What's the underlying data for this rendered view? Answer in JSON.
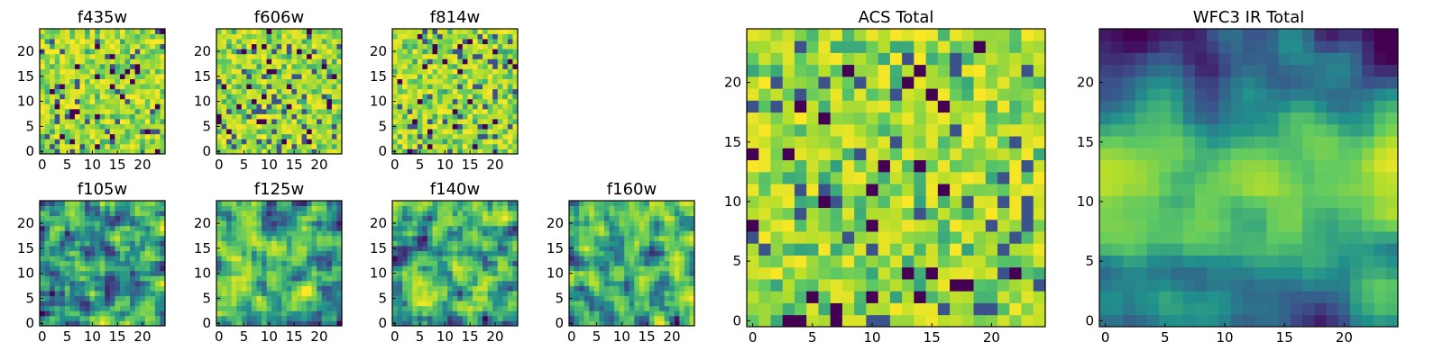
{
  "chart_data": [
    {
      "type": "heatmap",
      "title": "f435w",
      "grid_size": 25,
      "xticks": [
        "0",
        "5",
        "10",
        "15",
        "20"
      ],
      "yticks": [
        "0",
        "5",
        "10",
        "15",
        "20"
      ],
      "pattern": "noise",
      "seed": 11,
      "colormap": [
        "#440154",
        "#3b528b",
        "#21918c",
        "#5ec962",
        "#b5de2b",
        "#fde725"
      ]
    },
    {
      "type": "heatmap",
      "title": "f606w",
      "grid_size": 25,
      "xticks": [
        "0",
        "5",
        "10",
        "15",
        "20"
      ],
      "yticks": [
        "0",
        "5",
        "10",
        "15",
        "20"
      ],
      "pattern": "noise",
      "seed": 23,
      "colormap": [
        "#440154",
        "#3b528b",
        "#21918c",
        "#5ec962",
        "#b5de2b",
        "#fde725"
      ]
    },
    {
      "type": "heatmap",
      "title": "f814w",
      "grid_size": 25,
      "xticks": [
        "0",
        "5",
        "10",
        "15",
        "20"
      ],
      "yticks": [
        "0",
        "5",
        "10",
        "15",
        "20"
      ],
      "pattern": "noise",
      "seed": 37,
      "colormap": [
        "#440154",
        "#3b528b",
        "#21918c",
        "#5ec962",
        "#b5de2b",
        "#fde725"
      ]
    },
    {
      "type": "heatmap",
      "title": "f105w",
      "grid_size": 25,
      "xticks": [
        "0",
        "5",
        "10",
        "15",
        "20"
      ],
      "yticks": [
        "0",
        "5",
        "10",
        "15",
        "20"
      ],
      "pattern": "smooth",
      "seed": 41,
      "colormap": [
        "#440154",
        "#3b528b",
        "#21918c",
        "#5ec962",
        "#b5de2b",
        "#fde725"
      ]
    },
    {
      "type": "heatmap",
      "title": "f125w",
      "grid_size": 25,
      "xticks": [
        "0",
        "5",
        "10",
        "15",
        "20"
      ],
      "yticks": [
        "0",
        "5",
        "10",
        "15",
        "20"
      ],
      "pattern": "smooth",
      "seed": 53,
      "colormap": [
        "#440154",
        "#3b528b",
        "#21918c",
        "#5ec962",
        "#b5de2b",
        "#fde725"
      ]
    },
    {
      "type": "heatmap",
      "title": "f140w",
      "grid_size": 25,
      "xticks": [
        "0",
        "5",
        "10",
        "15",
        "20"
      ],
      "yticks": [
        "0",
        "5",
        "10",
        "15",
        "20"
      ],
      "pattern": "smooth",
      "seed": 67,
      "colormap": [
        "#440154",
        "#3b528b",
        "#21918c",
        "#5ec962",
        "#b5de2b",
        "#fde725"
      ]
    },
    {
      "type": "heatmap",
      "title": "f160w",
      "grid_size": 25,
      "xticks": [
        "0",
        "5",
        "10",
        "15",
        "20"
      ],
      "yticks": [
        "0",
        "5",
        "10",
        "15",
        "20"
      ],
      "pattern": "smooth",
      "seed": 79,
      "colormap": [
        "#440154",
        "#3b528b",
        "#21918c",
        "#5ec962",
        "#b5de2b",
        "#fde725"
      ]
    },
    {
      "type": "heatmap",
      "title": "ACS Total",
      "grid_size": 25,
      "xticks": [
        "0",
        "5",
        "10",
        "15",
        "20"
      ],
      "yticks": [
        "0",
        "5",
        "10",
        "15",
        "20"
      ],
      "pattern": "noise",
      "seed": 91,
      "colormap": [
        "#440154",
        "#3b528b",
        "#21918c",
        "#5ec962",
        "#b5de2b",
        "#fde725"
      ]
    },
    {
      "type": "heatmap",
      "title": "WFC3 IR Total",
      "grid_size": 25,
      "xticks": [
        "0",
        "5",
        "10",
        "15",
        "20"
      ],
      "yticks": [
        "0",
        "5",
        "10",
        "15",
        "20"
      ],
      "pattern": "band",
      "seed": 103,
      "colormap": [
        "#440154",
        "#3b528b",
        "#21918c",
        "#5ec962",
        "#b5de2b",
        "#fde725"
      ]
    }
  ]
}
